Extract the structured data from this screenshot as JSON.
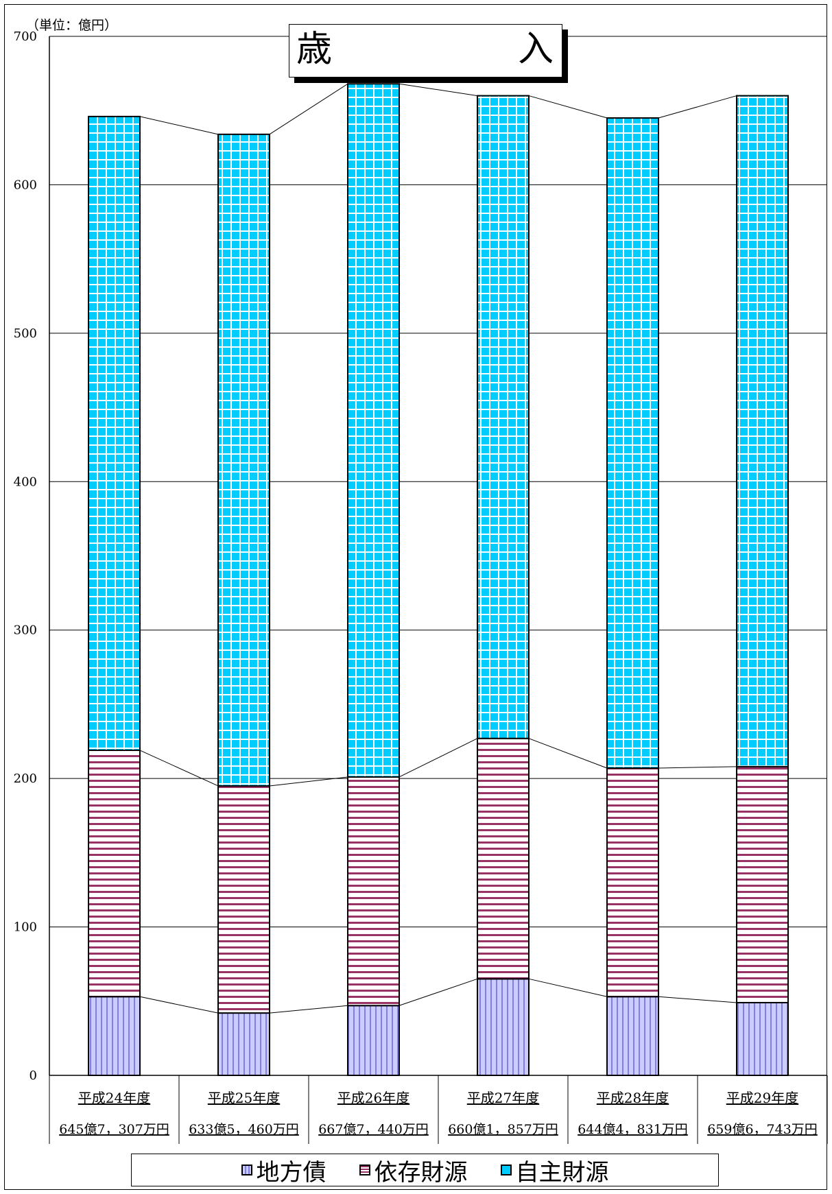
{
  "unit_label": "（単位：億円）",
  "title": {
    "part1": "歳",
    "part2": "入"
  },
  "chart_data": {
    "type": "bar",
    "stacked": true,
    "title": "歳　入",
    "categories": [
      "平成24年度",
      "平成25年度",
      "平成26年度",
      "平成27年度",
      "平成28年度",
      "平成29年度"
    ],
    "totals": [
      "645億7，307万円",
      "633億5，460万円",
      "667億7，440万円",
      "660億1，857万円",
      "644億4，831万円",
      "659億6，743万円"
    ],
    "series": [
      {
        "name": "地方債",
        "values": [
          53,
          42,
          47,
          65,
          53,
          49
        ],
        "color": "#ccccff",
        "pattern": "vertical",
        "pattern_color": "#8080e0"
      },
      {
        "name": "依存財源",
        "values": [
          166,
          153,
          154,
          162,
          154,
          159
        ],
        "color": "#ffffff",
        "pattern": "horizontal",
        "pattern_color": "#993366"
      },
      {
        "name": "自主財源",
        "values": [
          427,
          439,
          467,
          433,
          438,
          452
        ],
        "color": "#00ccff",
        "pattern": "grid",
        "pattern_color": "#ffffff"
      }
    ],
    "ylim": [
      0,
      700
    ],
    "yticks": [
      0,
      100,
      200,
      300,
      400,
      500,
      600,
      700
    ],
    "grid": true,
    "series_lines": true,
    "legend_position": "bottom"
  }
}
